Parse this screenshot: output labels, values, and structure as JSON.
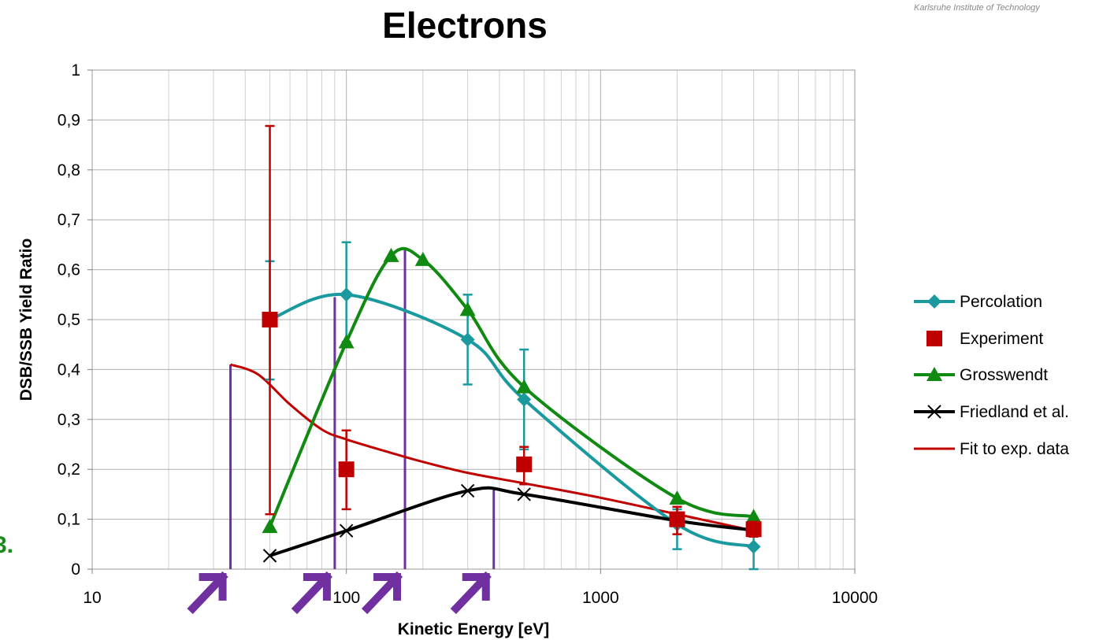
{
  "logo_text": "Karlsruhe Institute of Technology",
  "edge_glyph": "3.",
  "chart_data": {
    "type": "line",
    "title": "Electrons",
    "xlabel": "Kinetic Energy [eV]",
    "ylabel": "DSB/SSB Yield Ratio",
    "xscale": "log",
    "xlim": [
      10,
      10000
    ],
    "ylim": [
      0,
      1
    ],
    "x_ticks": [
      "10",
      "100",
      "1000",
      "10000"
    ],
    "y_ticks": [
      "0",
      "0,1",
      "0,2",
      "0,3",
      "0,4",
      "0,5",
      "0,6",
      "0,7",
      "0,8",
      "0,9",
      "1"
    ],
    "grid": true,
    "legend_position": "right",
    "series": [
      {
        "name": "Percolation",
        "color": "#1a9a9e",
        "marker": "diamond",
        "smooth": true,
        "points": [
          [
            50,
            0.5
          ],
          [
            100,
            0.55
          ],
          [
            300,
            0.46
          ],
          [
            500,
            0.34
          ],
          [
            2000,
            0.09
          ],
          [
            4000,
            0.045
          ]
        ],
        "errors": [
          [
            50,
            0.38,
            0.617
          ],
          [
            100,
            0.455,
            0.655
          ],
          [
            300,
            0.37,
            0.55
          ],
          [
            500,
            0.24,
            0.44
          ],
          [
            2000,
            0.04,
            0.12
          ],
          [
            4000,
            0.0,
            0.1
          ]
        ]
      },
      {
        "name": "Experiment",
        "color": "#c00000",
        "marker": "square",
        "points": [
          [
            50,
            0.5
          ],
          [
            100,
            0.2
          ],
          [
            500,
            0.21
          ],
          [
            2000,
            0.1
          ],
          [
            4000,
            0.08
          ]
        ],
        "errors": [
          [
            50,
            0.11,
            0.888
          ],
          [
            100,
            0.12,
            0.278
          ],
          [
            500,
            0.17,
            0.245
          ],
          [
            2000,
            0.07,
            0.125
          ],
          [
            4000,
            0.065,
            0.095
          ]
        ]
      },
      {
        "name": "Grosswendt",
        "color": "#118a11",
        "marker": "triangle",
        "smooth": true,
        "points": [
          [
            50,
            0.085
          ],
          [
            100,
            0.455
          ],
          [
            150,
            0.628
          ],
          [
            200,
            0.62
          ],
          [
            300,
            0.52
          ],
          [
            500,
            0.365
          ],
          [
            2000,
            0.142
          ],
          [
            4000,
            0.105
          ]
        ]
      },
      {
        "name": "Friedland et al.",
        "color": "#000000",
        "marker": "x",
        "smooth": true,
        "points": [
          [
            50,
            0.027
          ],
          [
            100,
            0.077
          ],
          [
            300,
            0.157
          ],
          [
            500,
            0.15
          ],
          [
            2000,
            0.097
          ],
          [
            4000,
            0.078
          ]
        ]
      },
      {
        "name": "Fit to exp. data",
        "color": "#c00000",
        "marker": "none",
        "smooth": true,
        "points": [
          [
            35,
            0.41
          ],
          [
            45,
            0.39
          ],
          [
            60,
            0.33
          ],
          [
            80,
            0.28
          ],
          [
            100,
            0.26
          ],
          [
            150,
            0.233
          ],
          [
            200,
            0.215
          ],
          [
            300,
            0.193
          ],
          [
            500,
            0.172
          ],
          [
            1000,
            0.143
          ],
          [
            2000,
            0.11
          ],
          [
            4000,
            0.077
          ]
        ]
      }
    ],
    "markers_vertical": {
      "color": "#7030a0",
      "lines": [
        [
          35,
          0.41
        ],
        [
          90,
          0.545
        ],
        [
          170,
          0.64
        ],
        [
          380,
          0.16
        ]
      ]
    }
  }
}
